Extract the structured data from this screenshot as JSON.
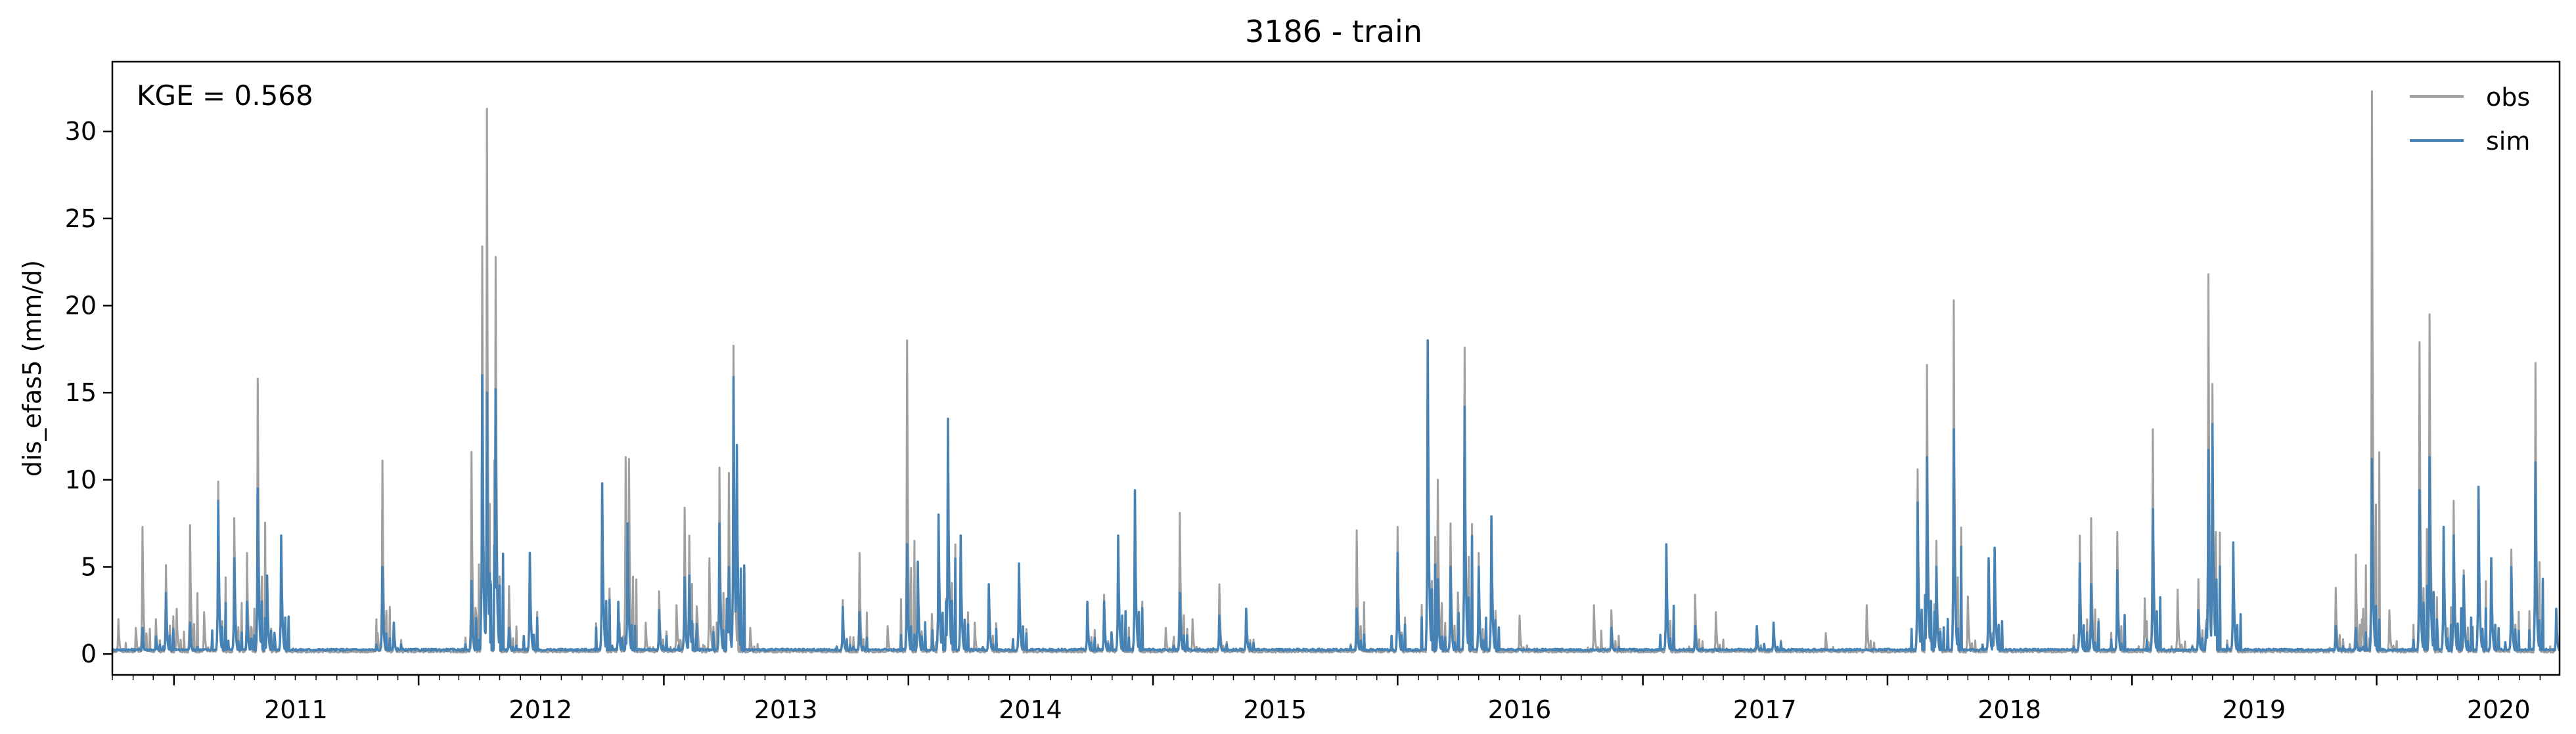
{
  "chart_data": {
    "type": "line",
    "title": "3186 - train",
    "xlabel": "",
    "ylabel": "dis_efas5 (mm/d)",
    "annotation": "KGE = 0.568",
    "xlim": [
      "2010-10-01",
      "2020-09-30"
    ],
    "ylim": [
      -1.2,
      34
    ],
    "yticks": [
      0,
      5,
      10,
      15,
      20,
      25,
      30
    ],
    "xticks": [
      {
        "label": "2011",
        "date": "2011-01-01"
      },
      {
        "label": "2012",
        "date": "2012-01-01"
      },
      {
        "label": "2013",
        "date": "2013-01-01"
      },
      {
        "label": "2014",
        "date": "2014-01-01"
      },
      {
        "label": "2015",
        "date": "2015-01-01"
      },
      {
        "label": "2016",
        "date": "2016-01-01"
      },
      {
        "label": "2017",
        "date": "2017-01-01"
      },
      {
        "label": "2018",
        "date": "2018-01-01"
      },
      {
        "label": "2019",
        "date": "2019-01-01"
      },
      {
        "label": "2020",
        "date": "2020-01-01"
      }
    ],
    "legend_position": "top-right",
    "grid": false,
    "series": [
      {
        "name": "obs",
        "color": "#a0a0a0",
        "peaks": [
          [
            "2010-10-10",
            2.0
          ],
          [
            "2010-11-05",
            1.5
          ],
          [
            "2010-11-15",
            7.3
          ],
          [
            "2010-12-05",
            2.0
          ],
          [
            "2010-12-20",
            5.1
          ],
          [
            "2011-01-05",
            2.6
          ],
          [
            "2011-01-25",
            7.4
          ],
          [
            "2011-02-15",
            2.4
          ],
          [
            "2011-03-08",
            9.9
          ],
          [
            "2011-04-01",
            7.8
          ],
          [
            "2011-04-20",
            5.8
          ],
          [
            "2011-05-06",
            15.8
          ],
          [
            "2011-05-20",
            4.5
          ],
          [
            "2011-06-10",
            6.8
          ],
          [
            "2011-11-01",
            1.2
          ],
          [
            "2011-11-08",
            11.1
          ],
          [
            "2011-11-25",
            1.8
          ],
          [
            "2012-03-20",
            11.6
          ],
          [
            "2012-04-05",
            23.4
          ],
          [
            "2012-04-12",
            31.3
          ],
          [
            "2012-04-25",
            22.8
          ],
          [
            "2012-05-15",
            3.9
          ],
          [
            "2012-06-15",
            5.8
          ],
          [
            "2012-10-01",
            9.8
          ],
          [
            "2012-10-25",
            3.0
          ],
          [
            "2012-11-05",
            11.3
          ],
          [
            "2012-11-10",
            11.2
          ],
          [
            "2012-12-05",
            1.8
          ],
          [
            "2012-12-25",
            3.6
          ],
          [
            "2013-01-20",
            2.8
          ],
          [
            "2013-02-01",
            8.4
          ],
          [
            "2013-02-08",
            6.8
          ],
          [
            "2013-02-20",
            2.2
          ],
          [
            "2013-03-10",
            5.5
          ],
          [
            "2013-03-25",
            10.7
          ],
          [
            "2013-04-08",
            10.4
          ],
          [
            "2013-04-15",
            17.7
          ],
          [
            "2013-05-10",
            1.5
          ],
          [
            "2013-09-25",
            3.1
          ],
          [
            "2013-10-20",
            5.8
          ],
          [
            "2013-12-01",
            1.6
          ],
          [
            "2013-12-30",
            18.0
          ],
          [
            "2014-01-15",
            4.6
          ],
          [
            "2014-02-05",
            2.3
          ],
          [
            "2014-02-15",
            7.9
          ],
          [
            "2014-03-01",
            13.5
          ],
          [
            "2014-03-20",
            6.8
          ],
          [
            "2014-04-10",
            1.8
          ],
          [
            "2014-05-01",
            4.0
          ],
          [
            "2014-06-15",
            5.2
          ],
          [
            "2014-09-25",
            3.0
          ],
          [
            "2014-10-20",
            3.4
          ],
          [
            "2014-11-10",
            6.8
          ],
          [
            "2014-12-05",
            9.4
          ],
          [
            "2015-01-20",
            1.5
          ],
          [
            "2015-02-10",
            8.1
          ],
          [
            "2015-03-01",
            2.0
          ],
          [
            "2015-04-10",
            4.0
          ],
          [
            "2015-05-20",
            2.6
          ],
          [
            "2015-11-01",
            7.1
          ],
          [
            "2016-01-01",
            7.3
          ],
          [
            "2016-02-15",
            17.9
          ],
          [
            "2016-03-01",
            10.0
          ],
          [
            "2016-03-20",
            7.5
          ],
          [
            "2016-04-10",
            17.6
          ],
          [
            "2016-05-01",
            5.8
          ],
          [
            "2016-05-20",
            7.9
          ],
          [
            "2016-07-01",
            2.2
          ],
          [
            "2016-10-20",
            2.8
          ],
          [
            "2016-11-15",
            2.5
          ],
          [
            "2017-02-05",
            6.3
          ],
          [
            "2017-03-20",
            3.4
          ],
          [
            "2017-04-20",
            2.4
          ],
          [
            "2017-06-20",
            1.6
          ],
          [
            "2017-07-15",
            1.8
          ],
          [
            "2017-10-01",
            1.2
          ],
          [
            "2017-12-01",
            2.8
          ],
          [
            "2018-02-15",
            10.6
          ],
          [
            "2018-03-01",
            16.6
          ],
          [
            "2018-03-15",
            6.5
          ],
          [
            "2018-04-10",
            20.3
          ],
          [
            "2018-05-01",
            3.3
          ],
          [
            "2018-06-01",
            5.5
          ],
          [
            "2018-06-10",
            6.1
          ],
          [
            "2018-10-15",
            6.8
          ],
          [
            "2018-11-01",
            7.8
          ],
          [
            "2018-12-10",
            7.0
          ],
          [
            "2019-01-20",
            3.2
          ],
          [
            "2019-02-01",
            12.9
          ],
          [
            "2019-03-10",
            3.7
          ],
          [
            "2019-04-10",
            4.3
          ],
          [
            "2019-04-25",
            21.8
          ],
          [
            "2019-05-01",
            15.5
          ],
          [
            "2019-06-01",
            6.4
          ],
          [
            "2019-11-01",
            3.8
          ],
          [
            "2019-12-01",
            5.7
          ],
          [
            "2019-12-10",
            2.0
          ],
          [
            "2019-12-25",
            32.3
          ],
          [
            "2020-01-20",
            2.5
          ],
          [
            "2020-03-05",
            17.9
          ],
          [
            "2020-03-20",
            19.5
          ],
          [
            "2020-04-10",
            7.3
          ],
          [
            "2020-04-25",
            8.8
          ],
          [
            "2020-05-10",
            4.8
          ],
          [
            "2020-06-01",
            9.6
          ],
          [
            "2020-06-20",
            5.5
          ],
          [
            "2020-07-20",
            6.0
          ],
          [
            "2020-08-25",
            16.7
          ],
          [
            "2020-09-25",
            2.6
          ]
        ]
      },
      {
        "name": "sim",
        "color": "#4682b4",
        "peaks": [
          [
            "2010-11-15",
            1.5
          ],
          [
            "2010-12-05",
            1.0
          ],
          [
            "2010-12-20",
            3.5
          ],
          [
            "2011-01-25",
            1.8
          ],
          [
            "2011-03-08",
            8.8
          ],
          [
            "2011-04-01",
            5.5
          ],
          [
            "2011-04-20",
            3.0
          ],
          [
            "2011-05-06",
            9.5
          ],
          [
            "2011-05-20",
            4.5
          ],
          [
            "2011-06-10",
            6.8
          ],
          [
            "2011-11-08",
            5.0
          ],
          [
            "2011-11-25",
            1.8
          ],
          [
            "2012-03-20",
            4.2
          ],
          [
            "2012-04-05",
            16.0
          ],
          [
            "2012-04-12",
            15.0
          ],
          [
            "2012-04-25",
            15.2
          ],
          [
            "2012-05-15",
            1.5
          ],
          [
            "2012-06-15",
            5.8
          ],
          [
            "2012-10-01",
            9.8
          ],
          [
            "2012-10-25",
            3.0
          ],
          [
            "2012-11-08",
            7.5
          ],
          [
            "2012-12-25",
            2.5
          ],
          [
            "2013-02-01",
            4.4
          ],
          [
            "2013-02-08",
            4.5
          ],
          [
            "2013-03-25",
            7.5
          ],
          [
            "2013-04-08",
            5.0
          ],
          [
            "2013-04-15",
            15.9
          ],
          [
            "2013-04-20",
            12.0
          ],
          [
            "2013-09-25",
            2.7
          ],
          [
            "2013-10-20",
            2.4
          ],
          [
            "2013-12-30",
            6.3
          ],
          [
            "2014-01-15",
            5.3
          ],
          [
            "2014-02-15",
            8.0
          ],
          [
            "2014-03-01",
            13.5
          ],
          [
            "2014-03-20",
            6.8
          ],
          [
            "2014-05-01",
            4.0
          ],
          [
            "2014-06-15",
            5.2
          ],
          [
            "2014-09-25",
            3.0
          ],
          [
            "2014-10-20",
            3.0
          ],
          [
            "2014-11-10",
            6.8
          ],
          [
            "2014-12-05",
            9.4
          ],
          [
            "2015-02-10",
            3.5
          ],
          [
            "2015-04-10",
            2.2
          ],
          [
            "2015-05-20",
            2.6
          ],
          [
            "2015-11-01",
            2.6
          ],
          [
            "2016-01-01",
            5.8
          ],
          [
            "2016-02-15",
            18.0
          ],
          [
            "2016-03-01",
            4.3
          ],
          [
            "2016-03-20",
            5.0
          ],
          [
            "2016-04-10",
            14.2
          ],
          [
            "2016-05-01",
            5.0
          ],
          [
            "2016-05-20",
            7.9
          ],
          [
            "2016-11-15",
            1.5
          ],
          [
            "2017-02-05",
            6.3
          ],
          [
            "2017-03-20",
            1.6
          ],
          [
            "2017-06-20",
            1.6
          ],
          [
            "2017-07-15",
            1.8
          ],
          [
            "2018-02-15",
            8.7
          ],
          [
            "2018-03-01",
            11.3
          ],
          [
            "2018-03-15",
            5.0
          ],
          [
            "2018-04-10",
            12.9
          ],
          [
            "2018-06-01",
            5.5
          ],
          [
            "2018-06-10",
            6.1
          ],
          [
            "2018-10-15",
            5.2
          ],
          [
            "2018-11-01",
            4.0
          ],
          [
            "2018-12-10",
            4.8
          ],
          [
            "2019-02-01",
            8.3
          ],
          [
            "2019-04-10",
            2.5
          ],
          [
            "2019-04-25",
            11.7
          ],
          [
            "2019-05-01",
            13.2
          ],
          [
            "2019-06-01",
            6.4
          ],
          [
            "2019-11-01",
            1.6
          ],
          [
            "2019-12-01",
            1.5
          ],
          [
            "2019-12-25",
            11.2
          ],
          [
            "2020-03-05",
            9.4
          ],
          [
            "2020-03-20",
            11.3
          ],
          [
            "2020-04-10",
            7.3
          ],
          [
            "2020-04-25",
            6.8
          ],
          [
            "2020-05-10",
            4.5
          ],
          [
            "2020-06-01",
            9.6
          ],
          [
            "2020-06-20",
            5.5
          ],
          [
            "2020-07-20",
            5.0
          ],
          [
            "2020-08-25",
            11.0
          ],
          [
            "2020-09-25",
            2.6
          ]
        ]
      }
    ]
  }
}
